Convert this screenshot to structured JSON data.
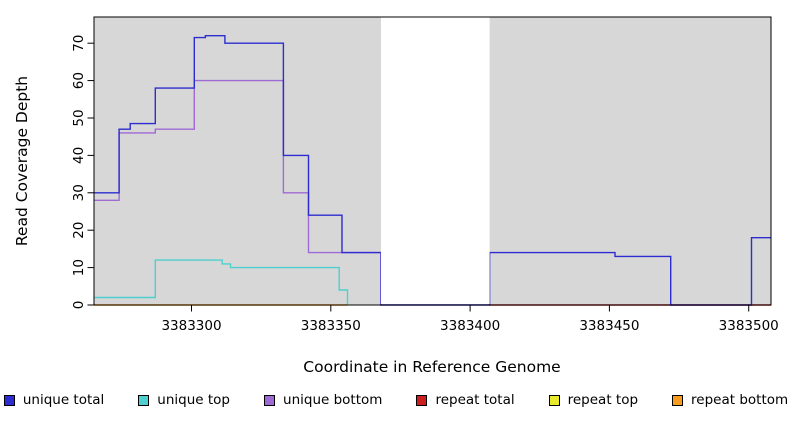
{
  "chart_data": {
    "type": "line",
    "step": true,
    "title": "",
    "xlabel": "Coordinate in Reference Genome",
    "ylabel": "Read Coverage Depth",
    "xlim": [
      3383265,
      3383508
    ],
    "ylim": [
      0,
      77
    ],
    "x_ticks": [
      3383300,
      3383350,
      3383400,
      3383450,
      3383500
    ],
    "y_ticks": [
      0,
      10,
      20,
      30,
      40,
      50,
      60,
      70
    ],
    "plot_background_color": "#d7d7d7",
    "masked_region": {
      "x1": 3383368,
      "x2": 3383407,
      "color": "#ffffff"
    },
    "grid": false,
    "legend_position": "bottom",
    "series": [
      {
        "name": "unique total",
        "color": "#2c2cd0",
        "z": 6,
        "points": [
          [
            3383265,
            30
          ],
          [
            3383274,
            47
          ],
          [
            3383278,
            48.5
          ],
          [
            3383287,
            58
          ],
          [
            3383301,
            71.5
          ],
          [
            3383305,
            72
          ],
          [
            3383312,
            70
          ],
          [
            3383333,
            40
          ],
          [
            3383342,
            24
          ],
          [
            3383354,
            14
          ],
          [
            3383368,
            0
          ],
          [
            3383407,
            14
          ],
          [
            3383452,
            13
          ],
          [
            3383472,
            0
          ],
          [
            3383501,
            18
          ],
          [
            3383508,
            18
          ]
        ]
      },
      {
        "name": "unique top",
        "color": "#4fcfcf",
        "z": 4,
        "points": [
          [
            3383265,
            2
          ],
          [
            3383287,
            12
          ],
          [
            3383311,
            11
          ],
          [
            3383314,
            10
          ],
          [
            3383353,
            4
          ],
          [
            3383356,
            0
          ]
        ]
      },
      {
        "name": "unique bottom",
        "color": "#a06ad4",
        "z": 5,
        "points": [
          [
            3383265,
            28
          ],
          [
            3383274,
            46
          ],
          [
            3383287,
            47
          ],
          [
            3383301,
            60
          ],
          [
            3383333,
            30
          ],
          [
            3383342,
            14
          ],
          [
            3383368,
            0
          ]
        ]
      },
      {
        "name": "repeat total",
        "color": "#cc2020",
        "z": 3,
        "points": [
          [
            3383407,
            0
          ],
          [
            3383508,
            0
          ]
        ]
      },
      {
        "name": "repeat top",
        "color": "#e9e92e",
        "z": 1,
        "points": []
      },
      {
        "name": "repeat bottom",
        "color": "#f79c1e",
        "z": 2,
        "points": [
          [
            3383265,
            0
          ],
          [
            3383356,
            0
          ]
        ]
      }
    ]
  }
}
